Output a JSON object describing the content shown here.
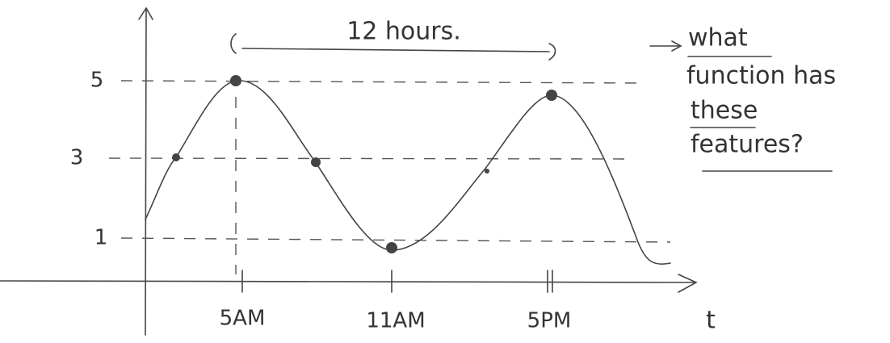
{
  "y_axis": {
    "labels": [
      "5",
      "3",
      "1"
    ]
  },
  "x_axis": {
    "labels": [
      "5AM",
      "11AM",
      "5PM"
    ],
    "variable": "t"
  },
  "period_label": "12 hours.",
  "question": {
    "lines": [
      "what",
      "function has",
      "these",
      "features?"
    ]
  }
}
